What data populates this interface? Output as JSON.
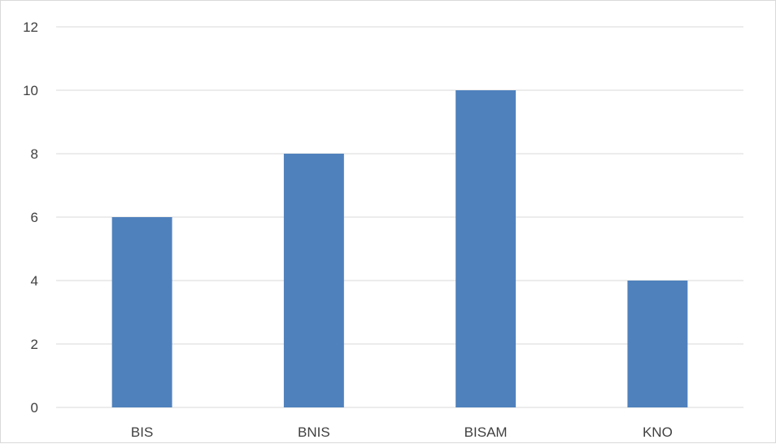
{
  "chart_data": {
    "type": "bar",
    "categories": [
      "BIS",
      "BNIS",
      "BISAM",
      "KNO"
    ],
    "values": [
      6,
      8,
      10,
      4
    ],
    "title": "",
    "xlabel": "",
    "ylabel": "",
    "ylim": [
      0,
      12
    ],
    "y_ticks": [
      0,
      2,
      4,
      6,
      8,
      10,
      12
    ],
    "grid": true,
    "legend": "none",
    "bar_color": "#4f81bd",
    "gridline_color": "#d9d9d9"
  }
}
